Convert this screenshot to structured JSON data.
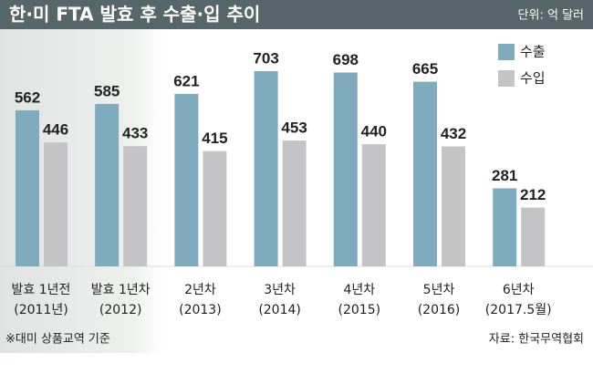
{
  "chart_data": {
    "type": "bar",
    "title": "한·미 FTA 발효 후 수출·입 추이",
    "unit": "단위: 억 달러",
    "categories": [
      [
        "발효 1년전",
        "(2011년)"
      ],
      [
        "발효 1년차",
        "(2012)"
      ],
      [
        "2년차",
        "(2013)"
      ],
      [
        "3년차",
        "(2014)"
      ],
      [
        "4년차",
        "(2015)"
      ],
      [
        "5년차",
        "(2016)"
      ],
      [
        "6년차",
        "(2017.5월)"
      ]
    ],
    "series": [
      {
        "name": "수출",
        "color": "#7eabbd",
        "values": [
          562,
          585,
          621,
          703,
          698,
          665,
          281
        ]
      },
      {
        "name": "수입",
        "color": "#c4c4c6",
        "values": [
          446,
          433,
          415,
          453,
          440,
          432,
          212
        ]
      }
    ],
    "legend": "top-right",
    "note": "※대미 상품교역 기준",
    "source": "자료: 한국무역협회"
  }
}
